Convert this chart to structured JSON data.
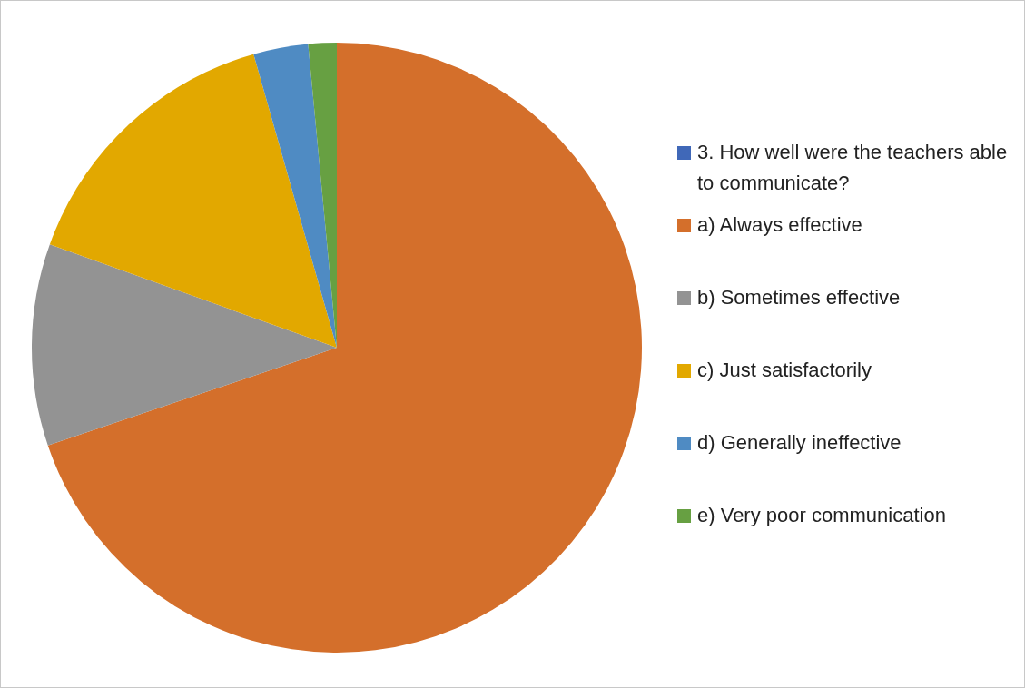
{
  "chart_data": {
    "type": "pie",
    "categories": [
      "3. How well were the teachers able to communicate?",
      "a)  Always effective",
      "b) Sometimes effective",
      "c) Just satisfactorily",
      "d) Generally ineffective",
      "e) Very poor communication"
    ],
    "values": [
      0,
      69.8,
      10.7,
      15.1,
      2.9,
      1.5
    ],
    "colors": [
      "#4068b8",
      "#d46f2b",
      "#939393",
      "#e2a800",
      "#4f8bc3",
      "#67a042"
    ],
    "legend": "right"
  }
}
